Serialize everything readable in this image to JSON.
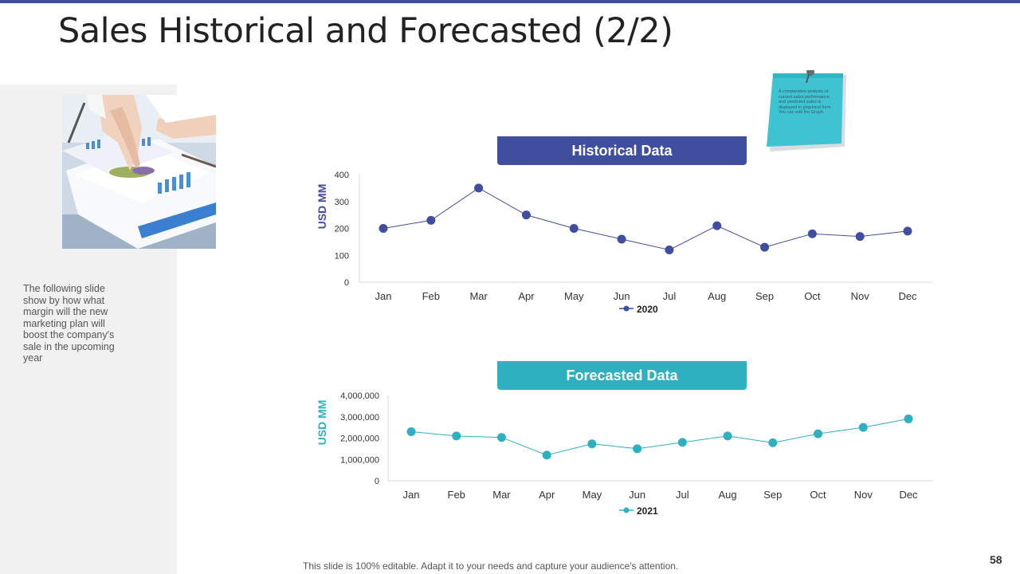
{
  "slide": {
    "title": "Sales Historical and Forecasted (2/2)",
    "sidebar_text": "The following slide show by how what margin will the new marketing plan will boost the company's sale in the upcoming year",
    "note_text": "A comparative analysis of current sales performance and predicted sales is displayed in graphical form . You can edit the Graph.",
    "footer": "This slide is 100% editable. Adapt it to your needs and capture your audience's attention.",
    "page_number": "58",
    "colors": {
      "accent_blue": "#3f4e9e",
      "accent_teal": "#2eb0c0"
    }
  },
  "chart_data": [
    {
      "type": "line",
      "title": "Historical Data",
      "ylabel": "USD MM",
      "categories": [
        "Jan",
        "Feb",
        "Mar",
        "Apr",
        "May",
        "Jun",
        "Jul",
        "Aug",
        "Sep",
        "Oct",
        "Nov",
        "Dec"
      ],
      "series": [
        {
          "name": "2020",
          "values": [
            200,
            230,
            350,
            250,
            200,
            160,
            120,
            210,
            130,
            180,
            170,
            190
          ]
        }
      ],
      "ylim": [
        0,
        400
      ],
      "yticks": [
        "0",
        "100",
        "200",
        "300",
        "400"
      ],
      "legend": "bottom",
      "color": "#3f4e9e"
    },
    {
      "type": "line",
      "title": "Forecasted Data",
      "ylabel": "USD MM",
      "categories": [
        "Jan",
        "Feb",
        "Mar",
        "Apr",
        "May",
        "Jun",
        "Jul",
        "Aug",
        "Sep",
        "Oct",
        "Nov",
        "Dec"
      ],
      "series": [
        {
          "name": "2021",
          "values": [
            2300000,
            2100000,
            2030000,
            1200000,
            1730000,
            1500000,
            1800000,
            2100000,
            1780000,
            2200000,
            2500000,
            2900000
          ]
        }
      ],
      "ylim": [
        0,
        4000000
      ],
      "yticks": [
        "0",
        "1,000,000",
        "2,000,000",
        "3,000,000",
        "4,000,000"
      ],
      "legend": "bottom",
      "color": "#2eb0c0"
    }
  ]
}
